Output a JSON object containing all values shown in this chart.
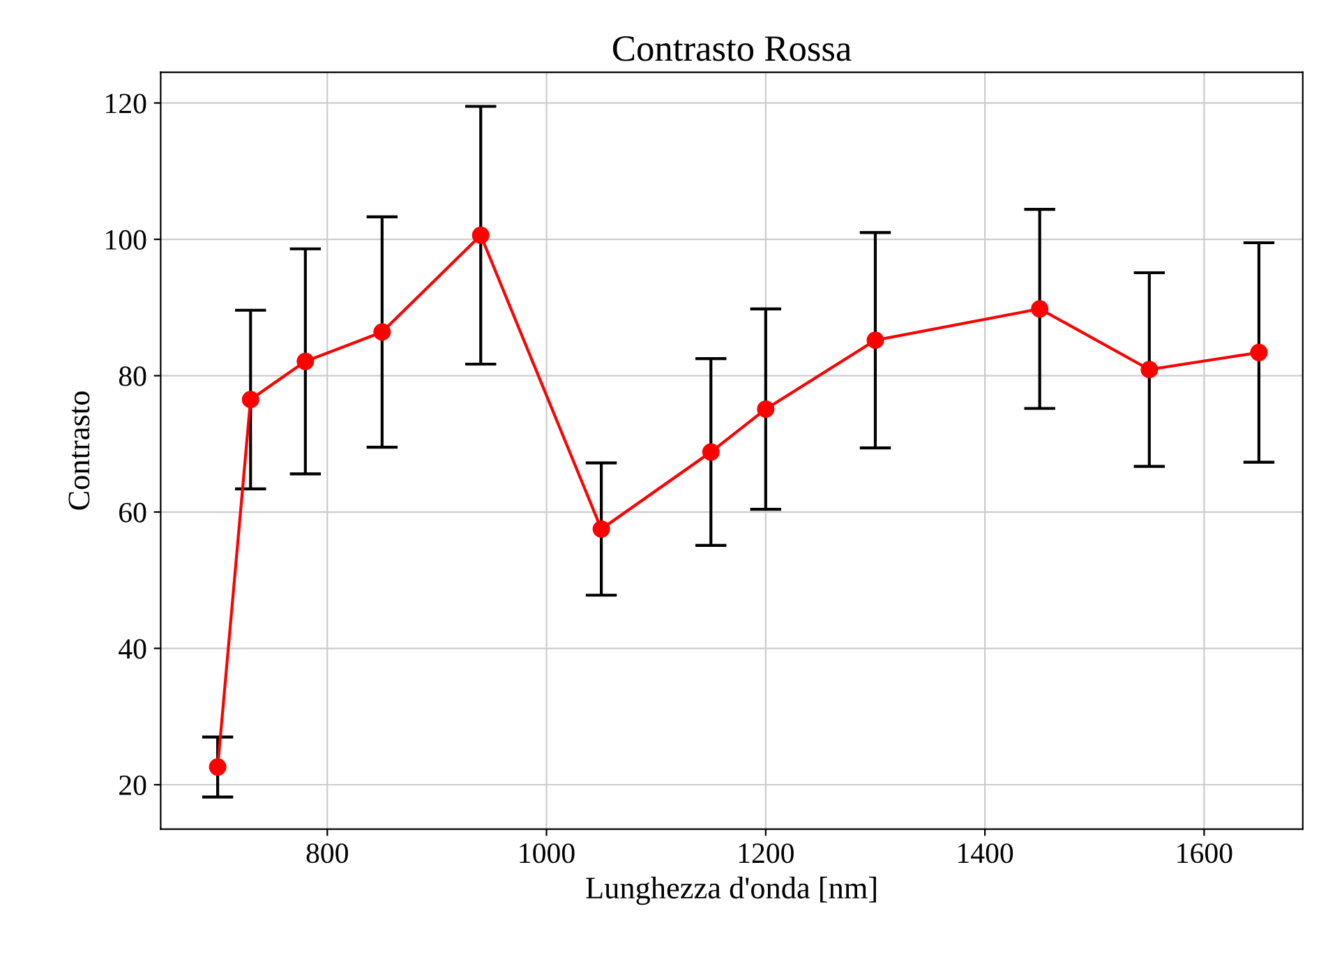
{
  "chart_data": {
    "type": "line",
    "title": "Contrasto Rossa",
    "xlabel": "Lunghezza d'onda [nm]",
    "ylabel": "Contrasto",
    "x": [
      700,
      730,
      780,
      850,
      940,
      1050,
      1150,
      1200,
      1300,
      1450,
      1550,
      1650
    ],
    "series": [
      {
        "color": "#ff0000",
        "values": [
          22.6,
          76.5,
          82.1,
          86.4,
          100.6,
          57.5,
          68.8,
          75.1,
          85.2,
          89.8,
          80.9,
          83.4
        ],
        "errors": [
          4.4,
          13.1,
          16.5,
          16.9,
          18.9,
          9.7,
          13.7,
          14.7,
          15.8,
          14.6,
          14.2,
          16.1
        ]
      }
    ],
    "xlim": [
      648,
      1690
    ],
    "xticks": [
      800,
      1000,
      1200,
      1400,
      1600
    ],
    "ylim": [
      13.5,
      124.5
    ],
    "yticks": [
      20,
      40,
      60,
      80,
      100,
      120
    ],
    "grid": true,
    "marker": "circle",
    "line_style": "solid"
  }
}
